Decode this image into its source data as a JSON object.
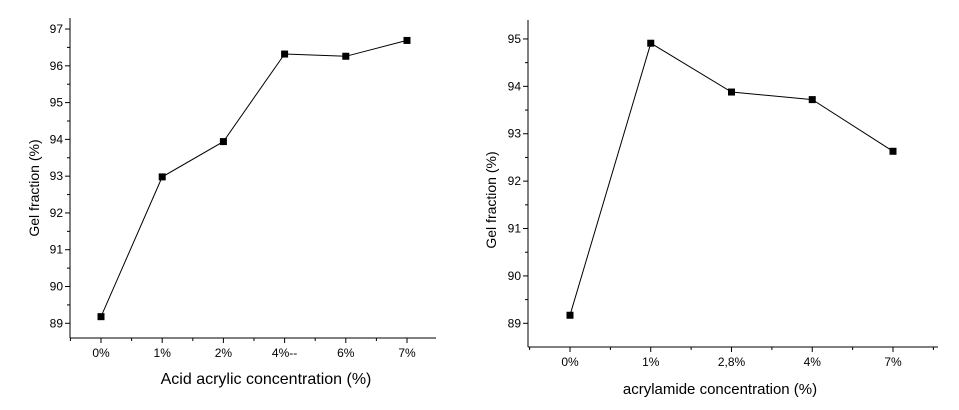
{
  "chart_data": [
    {
      "type": "line",
      "title": "",
      "xlabel": "Acid acrylic concentration (%)",
      "ylabel": "Gel fraction (%)",
      "categories": [
        "0%",
        "1%",
        "2%",
        "4%--",
        "6%",
        "7%"
      ],
      "series": [
        {
          "values": [
            89.18,
            92.98,
            93.94,
            96.32,
            96.26,
            96.69
          ]
        }
      ],
      "ylim": [
        88.6,
        97.3
      ],
      "yticks": [
        89,
        90,
        91,
        92,
        93,
        94,
        95,
        96,
        97
      ],
      "grid": false,
      "marker": "square",
      "color": "#000000"
    },
    {
      "type": "line",
      "title": "",
      "xlabel": "acrylamide concentration (%)",
      "ylabel": "Gel fraction (%)",
      "categories": [
        "0%",
        "1%",
        "2,8%",
        "4%",
        "7%"
      ],
      "series": [
        {
          "values": [
            89.17,
            94.91,
            93.88,
            93.72,
            92.63
          ]
        }
      ],
      "ylim": [
        88.5,
        95.4
      ],
      "yticks": [
        89,
        90,
        91,
        92,
        93,
        94,
        95
      ],
      "grid": false,
      "marker": "square",
      "color": "#000000"
    }
  ]
}
